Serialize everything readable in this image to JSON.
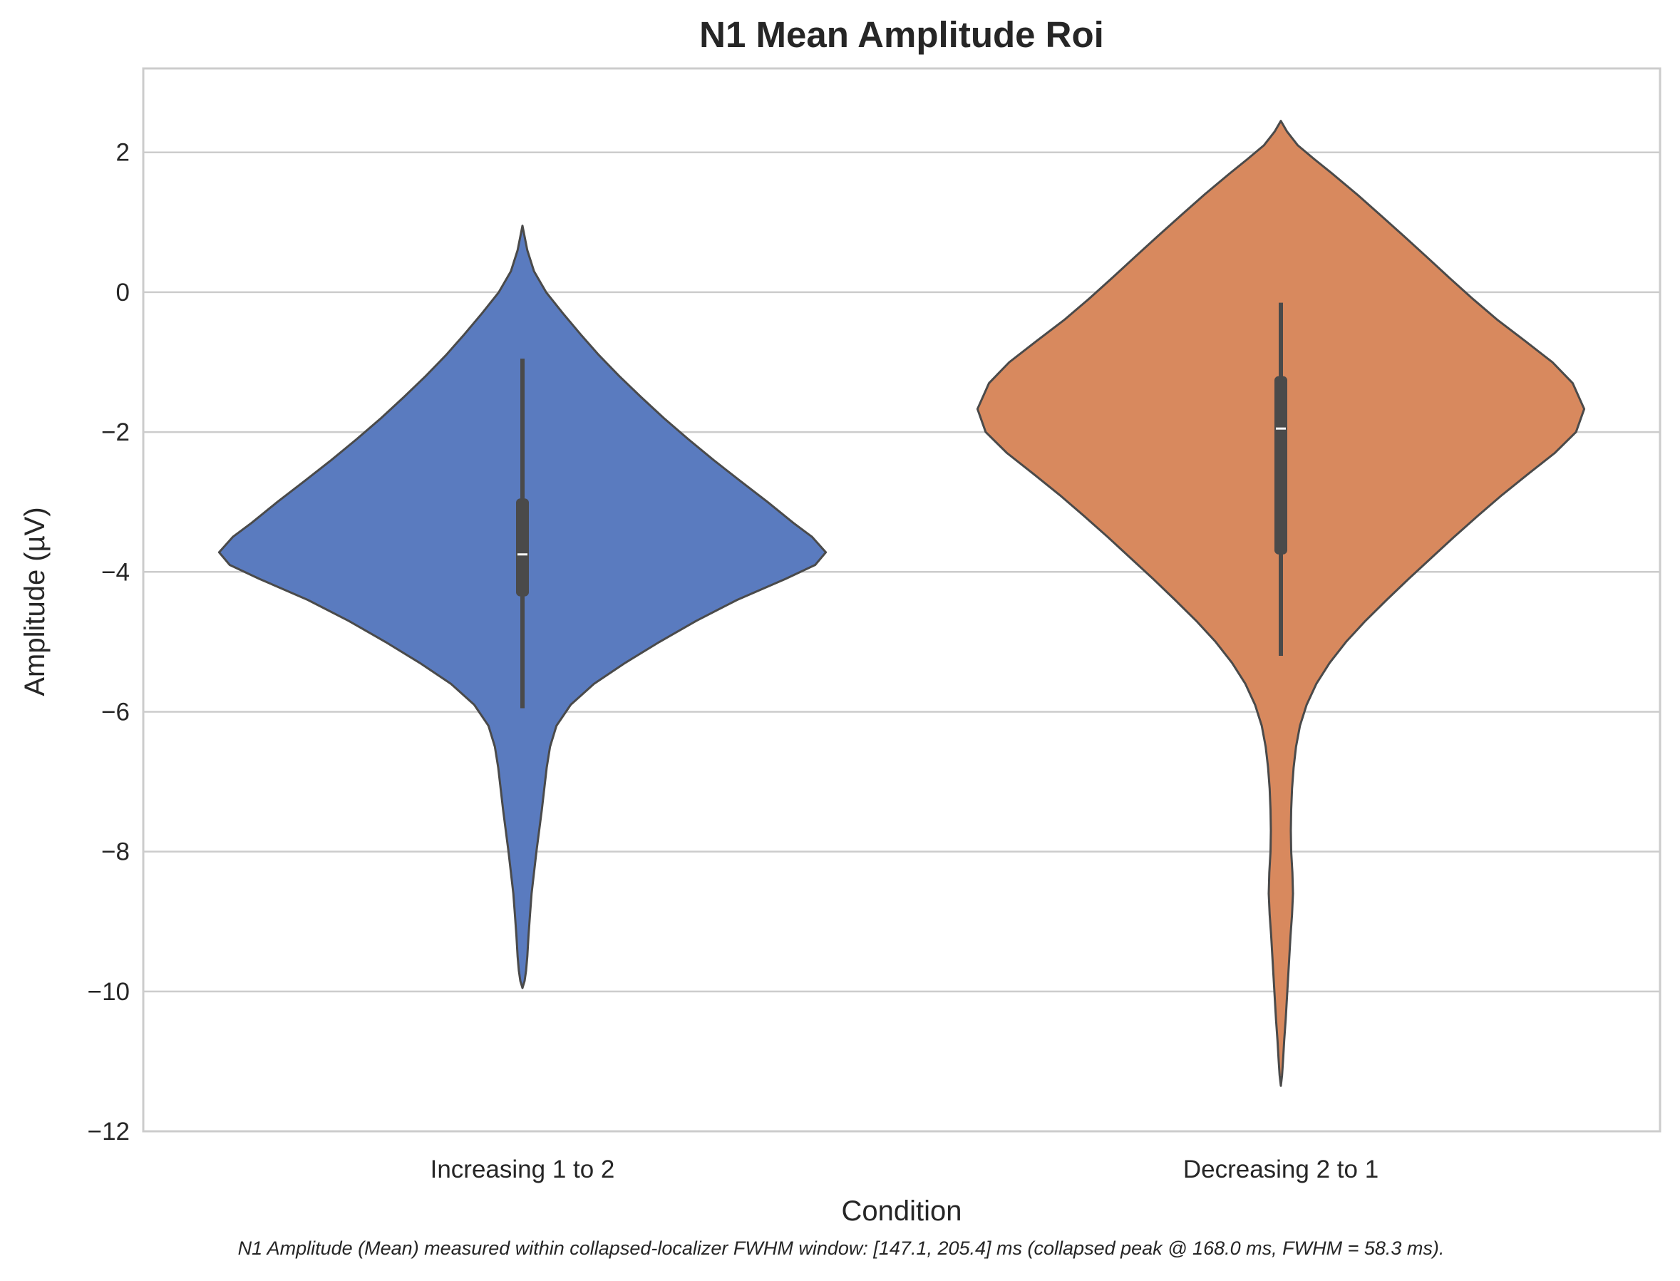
{
  "chart_data": {
    "type": "violin",
    "title": "N1 Mean Amplitude Roi",
    "xlabel": "Condition",
    "ylabel": "Amplitude (µV)",
    "ylim": [
      -12,
      3.2
    ],
    "yticks": [
      -12,
      -10,
      -8,
      -6,
      -4,
      -2,
      0,
      2
    ],
    "ytick_labels": [
      "−12",
      "−10",
      "−8",
      "−6",
      "−4",
      "−2",
      "0",
      "2"
    ],
    "grid": true,
    "categories": [
      "Increasing 1 to 2",
      "Decreasing 2 to 1"
    ],
    "series": [
      {
        "category": "Increasing 1 to 2",
        "color": "#5a7bbf",
        "min": -5.95,
        "q1": -4.35,
        "median": -3.75,
        "q3": -2.95,
        "max": -0.95,
        "kde_extent": [
          -9.95,
          0.95
        ],
        "density_profile": [
          [
            0.95,
            0.0
          ],
          [
            0.6,
            0.016
          ],
          [
            0.3,
            0.038
          ],
          [
            0.0,
            0.078
          ],
          [
            -0.3,
            0.133
          ],
          [
            -0.6,
            0.191
          ],
          [
            -0.9,
            0.252
          ],
          [
            -1.2,
            0.319
          ],
          [
            -1.5,
            0.391
          ],
          [
            -1.8,
            0.466
          ],
          [
            -2.1,
            0.546
          ],
          [
            -2.4,
            0.63
          ],
          [
            -2.7,
            0.718
          ],
          [
            -3.0,
            0.808
          ],
          [
            -3.3,
            0.893
          ],
          [
            -3.5,
            0.955
          ],
          [
            -3.72,
            1.0
          ],
          [
            -3.9,
            0.965
          ],
          [
            -4.1,
            0.867
          ],
          [
            -4.4,
            0.708
          ],
          [
            -4.7,
            0.573
          ],
          [
            -5.0,
            0.452
          ],
          [
            -5.3,
            0.339
          ],
          [
            -5.6,
            0.236
          ],
          [
            -5.9,
            0.159
          ],
          [
            -6.2,
            0.112
          ],
          [
            -6.5,
            0.091
          ],
          [
            -6.8,
            0.08
          ],
          [
            -7.1,
            0.072
          ],
          [
            -7.4,
            0.064
          ],
          [
            -7.7,
            0.055
          ],
          [
            -8.0,
            0.046
          ],
          [
            -8.3,
            0.038
          ],
          [
            -8.6,
            0.03
          ],
          [
            -8.9,
            0.025
          ],
          [
            -9.2,
            0.02
          ],
          [
            -9.5,
            0.016
          ],
          [
            -9.7,
            0.012
          ],
          [
            -9.85,
            0.007
          ],
          [
            -9.95,
            0.0
          ]
        ]
      },
      {
        "category": "Decreasing 2 to 1",
        "color": "#d8895e",
        "min": -5.2,
        "q1": -3.75,
        "median": -1.95,
        "q3": -1.2,
        "max": -0.15,
        "kde_extent": [
          -11.35,
          2.45
        ],
        "density_profile": [
          [
            2.45,
            0.0
          ],
          [
            2.3,
            0.02
          ],
          [
            2.1,
            0.056
          ],
          [
            1.9,
            0.111
          ],
          [
            1.7,
            0.168
          ],
          [
            1.4,
            0.251
          ],
          [
            1.1,
            0.329
          ],
          [
            0.8,
            0.406
          ],
          [
            0.5,
            0.482
          ],
          [
            0.2,
            0.557
          ],
          [
            -0.1,
            0.634
          ],
          [
            -0.4,
            0.715
          ],
          [
            -0.7,
            0.806
          ],
          [
            -1.0,
            0.895
          ],
          [
            -1.3,
            0.962
          ],
          [
            -1.67,
            1.0
          ],
          [
            -2.0,
            0.973
          ],
          [
            -2.3,
            0.903
          ],
          [
            -2.6,
            0.815
          ],
          [
            -2.9,
            0.729
          ],
          [
            -3.2,
            0.649
          ],
          [
            -3.5,
            0.571
          ],
          [
            -3.8,
            0.496
          ],
          [
            -4.1,
            0.421
          ],
          [
            -4.4,
            0.349
          ],
          [
            -4.7,
            0.279
          ],
          [
            -5.0,
            0.215
          ],
          [
            -5.3,
            0.161
          ],
          [
            -5.6,
            0.117
          ],
          [
            -5.9,
            0.085
          ],
          [
            -6.2,
            0.063
          ],
          [
            -6.5,
            0.05
          ],
          [
            -6.8,
            0.042
          ],
          [
            -7.1,
            0.037
          ],
          [
            -7.4,
            0.034
          ],
          [
            -7.7,
            0.033
          ],
          [
            -8.0,
            0.034
          ],
          [
            -8.3,
            0.038
          ],
          [
            -8.6,
            0.04
          ],
          [
            -8.9,
            0.037
          ],
          [
            -9.2,
            0.032
          ],
          [
            -9.5,
            0.028
          ],
          [
            -9.8,
            0.024
          ],
          [
            -10.1,
            0.02
          ],
          [
            -10.4,
            0.016
          ],
          [
            -10.7,
            0.011
          ],
          [
            -11.0,
            0.007
          ],
          [
            -11.2,
            0.004
          ],
          [
            -11.35,
            0.0
          ]
        ]
      }
    ],
    "caption": "N1 Amplitude (Mean) measured within collapsed-localizer FWHM window: [147.1, 205.4] ms (collapsed peak @ 168.0 ms, FWHM = 58.3 ms)."
  },
  "colors": {
    "grid": "#cccccc",
    "spine": "#cccccc",
    "outline": "#4a4a4a",
    "box": "#4a4a4a",
    "median": "#ffffff"
  }
}
